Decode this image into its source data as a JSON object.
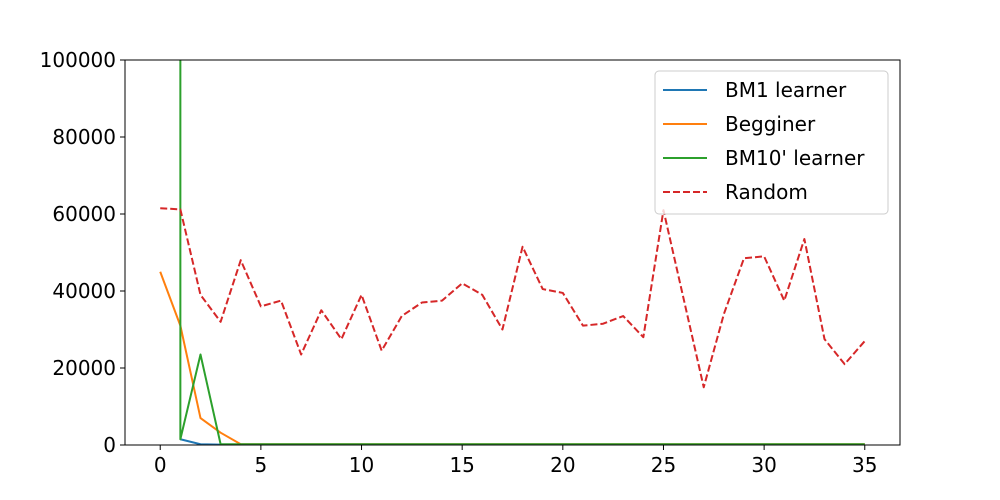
{
  "chart_data": {
    "type": "line",
    "title": "",
    "xlabel": "",
    "ylabel": "",
    "xlim": [
      -1.75,
      36.75
    ],
    "ylim": [
      0,
      100000
    ],
    "xticks": [
      0,
      5,
      10,
      15,
      20,
      25,
      30,
      35
    ],
    "yticks": [
      0,
      20000,
      40000,
      60000,
      80000,
      100000
    ],
    "xtick_labels": [
      "0",
      "5",
      "10",
      "15",
      "20",
      "25",
      "30",
      "35"
    ],
    "ytick_labels": [
      "0",
      "20000",
      "40000",
      "60000",
      "80000",
      "100000"
    ],
    "grid": false,
    "legend_position": "top-right",
    "series": [
      {
        "name": "BM1 learner",
        "color": "#1f77b4",
        "style": "solid",
        "x": [
          1,
          2,
          3,
          4,
          5,
          6,
          7,
          8,
          9,
          10,
          11,
          12,
          13,
          14,
          15,
          16,
          17,
          18,
          19,
          20,
          21,
          22,
          23,
          24,
          25,
          26,
          27,
          28,
          29,
          30,
          31,
          32,
          33,
          34,
          35
        ],
        "y": [
          1500,
          200,
          100,
          100,
          100,
          100,
          100,
          100,
          100,
          100,
          100,
          100,
          100,
          100,
          100,
          100,
          100,
          100,
          100,
          100,
          100,
          100,
          100,
          100,
          100,
          100,
          100,
          100,
          100,
          100,
          100,
          100,
          100,
          100,
          100
        ]
      },
      {
        "name": "Begginer",
        "color": "#ff7f0e",
        "style": "solid",
        "x": [
          0,
          1,
          2,
          3,
          4,
          5,
          6,
          7,
          8,
          9,
          10,
          11,
          12,
          13,
          14,
          15,
          16,
          17,
          18,
          19,
          20,
          21,
          22,
          23,
          24,
          25,
          26,
          27,
          28,
          29,
          30,
          31,
          32,
          33,
          34,
          35
        ],
        "y": [
          45000,
          31000,
          7000,
          3200,
          200,
          200,
          200,
          200,
          200,
          200,
          200,
          200,
          200,
          200,
          200,
          200,
          200,
          200,
          200,
          200,
          200,
          200,
          200,
          200,
          200,
          200,
          200,
          200,
          200,
          200,
          200,
          200,
          200,
          200,
          200,
          200
        ]
      },
      {
        "name": "BM10' learner",
        "color": "#2ca02c",
        "style": "solid",
        "x": [
          1,
          1,
          2,
          3,
          4,
          5,
          6,
          7,
          8,
          9,
          10,
          11,
          12,
          13,
          14,
          15,
          16,
          17,
          18,
          19,
          20,
          21,
          22,
          23,
          24,
          25,
          26,
          27,
          28,
          29,
          30,
          31,
          32,
          33,
          34,
          35
        ],
        "y": [
          100000,
          1500,
          23500,
          200,
          200,
          200,
          200,
          200,
          200,
          200,
          200,
          200,
          200,
          200,
          200,
          200,
          200,
          200,
          200,
          200,
          200,
          200,
          200,
          200,
          200,
          200,
          200,
          200,
          200,
          200,
          200,
          200,
          200,
          200,
          200,
          200
        ]
      },
      {
        "name": "Random",
        "color": "#d62728",
        "style": "dashed",
        "x": [
          0,
          1,
          2,
          3,
          4,
          5,
          6,
          7,
          8,
          9,
          10,
          11,
          12,
          13,
          14,
          15,
          16,
          17,
          18,
          19,
          20,
          21,
          22,
          23,
          24,
          25,
          26,
          27,
          28,
          29,
          30,
          31,
          32,
          33,
          34,
          35
        ],
        "y": [
          61500,
          61200,
          39000,
          32000,
          48000,
          36000,
          37500,
          23500,
          35000,
          27500,
          39000,
          24500,
          33500,
          37000,
          37500,
          42000,
          39000,
          30000,
          51500,
          40500,
          39500,
          31000,
          31500,
          33500,
          28000,
          61000,
          38000,
          15000,
          34000,
          48500,
          49000,
          37500,
          53500,
          27500,
          21000,
          27000
        ]
      }
    ]
  }
}
